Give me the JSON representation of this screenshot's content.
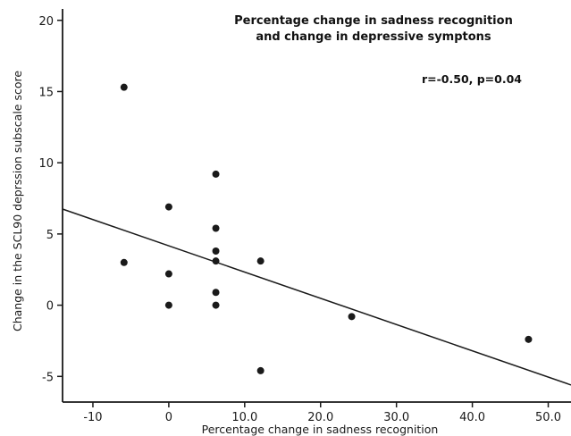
{
  "chart_data": {
    "type": "scatter",
    "title_lines": [
      "Percentage change in sadness recognition",
      "and change in depressive symptons"
    ],
    "annotation": "r=-0.50, p=0.04",
    "xlabel": "Percentage change in sadness recognition",
    "ylabel": "Change in the SCL90 deprssion subscale score",
    "xlim": [
      -14,
      53
    ],
    "ylim": [
      -6.8,
      20.8
    ],
    "x_ticks": [
      -10,
      0,
      10,
      20,
      30,
      40,
      50
    ],
    "x_tick_labels": [
      "-10",
      "0",
      "10.0",
      "20.0",
      "30.0",
      "40.0",
      "50.0"
    ],
    "y_ticks": [
      -5,
      0,
      5,
      10,
      15,
      20
    ],
    "y_tick_labels": [
      "-5",
      "0",
      "5",
      "10",
      "15",
      "20"
    ],
    "grid": false,
    "points": [
      {
        "x": -5.9,
        "y": 15.3
      },
      {
        "x": -5.9,
        "y": 3.0
      },
      {
        "x": 0,
        "y": 6.9
      },
      {
        "x": 0,
        "y": 2.2
      },
      {
        "x": 0,
        "y": 0.0
      },
      {
        "x": 6.2,
        "y": 9.2
      },
      {
        "x": 6.2,
        "y": 5.4
      },
      {
        "x": 6.2,
        "y": 3.8
      },
      {
        "x": 6.2,
        "y": 3.1
      },
      {
        "x": 6.2,
        "y": 0.9
      },
      {
        "x": 6.2,
        "y": 0.0
      },
      {
        "x": 12.1,
        "y": 3.1
      },
      {
        "x": 12.1,
        "y": -4.6
      },
      {
        "x": 24.1,
        "y": -0.8
      },
      {
        "x": 47.4,
        "y": -2.4
      }
    ],
    "trendline": {
      "x1": -14,
      "y1": 6.75,
      "x2": 53,
      "y2": -5.6
    },
    "colors": {
      "points": "#1a1a1a",
      "line": "#1a1a1a",
      "axis": "#1a1a1a"
    }
  }
}
